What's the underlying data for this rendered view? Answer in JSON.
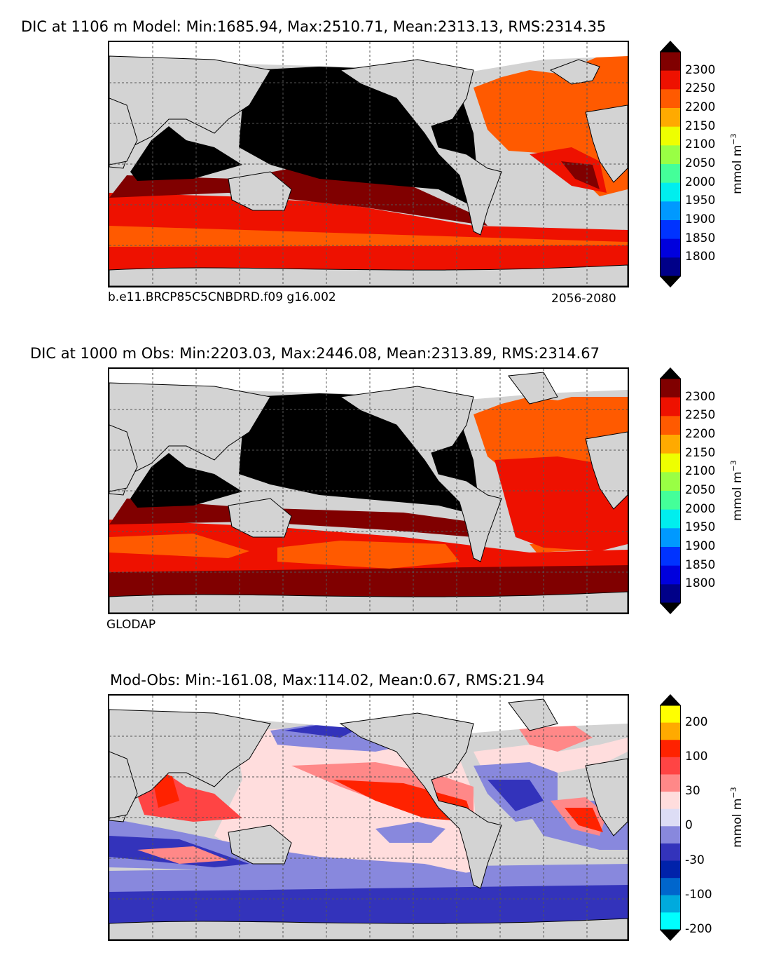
{
  "panels": [
    {
      "title": "DIC at 1106 m Model: Min:1685.94, Max:2510.71, Mean:2313.13, RMS:2314.35",
      "left_caption": "b.e11.BRCP85C5CNBDRD.f09 g16.002",
      "right_caption": "2056-2080",
      "colorbar": {
        "unit": "mmol m",
        "unit_exp": "−3",
        "labels": [
          "2300",
          "2250",
          "2200",
          "2150",
          "2100",
          "2050",
          "2000",
          "1950",
          "1900",
          "1850",
          "1800"
        ],
        "colors": [
          "#800000",
          "#ee1100",
          "#ff5a00",
          "#ffaa00",
          "#eeff00",
          "#99ff44",
          "#44ff99",
          "#00eeee",
          "#0099ff",
          "#0033ff",
          "#0000dd",
          "#000088"
        ]
      }
    },
    {
      "title": "DIC at 1000 m Obs: Min:2203.03, Max:2446.08, Mean:2313.89, RMS:2314.67",
      "left_caption": "GLODAP",
      "right_caption": "",
      "colorbar": {
        "unit": "mmol m",
        "unit_exp": "−3",
        "labels": [
          "2300",
          "2250",
          "2200",
          "2150",
          "2100",
          "2050",
          "2000",
          "1950",
          "1900",
          "1850",
          "1800"
        ],
        "colors": [
          "#800000",
          "#ee1100",
          "#ff5a00",
          "#ffaa00",
          "#eeff00",
          "#99ff44",
          "#44ff99",
          "#00eeee",
          "#0099ff",
          "#0033ff",
          "#0000dd",
          "#000088"
        ]
      }
    },
    {
      "title": "Mod-Obs: Min:-161.08, Max:114.02, Mean:0.67, RMS:21.94",
      "left_caption": "",
      "right_caption": "",
      "colorbar": {
        "unit": "mmol m",
        "unit_exp": "−3",
        "labels": [
          "200",
          "100",
          "30",
          "0",
          "-30",
          "-100",
          "-200"
        ],
        "colors": [
          "#ffff00",
          "#ffaa00",
          "#ff2200",
          "#ff4444",
          "#ff8888",
          "#ffdddd",
          "#ddddf5",
          "#8888dd",
          "#3333bb",
          "#0022aa",
          "#0066cc",
          "#00aadd",
          "#00ffff"
        ]
      }
    }
  ]
}
